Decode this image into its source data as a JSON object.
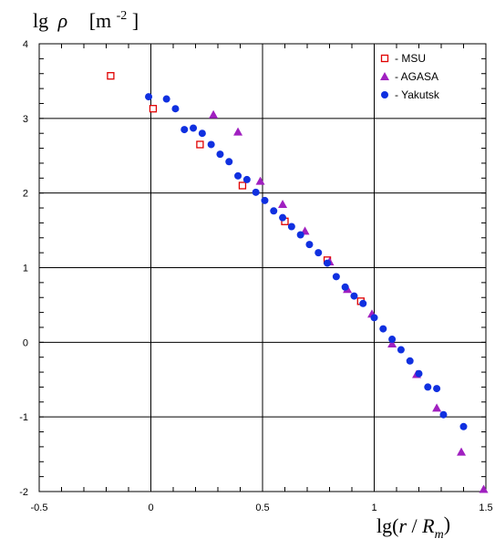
{
  "chart_data": {
    "type": "scatter",
    "ylabel": {
      "base": "lg",
      "symbol": "ρ",
      "unit_open": "[m",
      "unit_exp": "-2",
      "unit_close": "]"
    },
    "xlabel": {
      "prefix": "lg(",
      "var": "r",
      "slash": " / ",
      "denom": "R",
      "sub": "m",
      "suffix": ")"
    },
    "xlim": [
      -0.5,
      1.5
    ],
    "ylim": [
      -2,
      4
    ],
    "xticks": [
      -0.5,
      0,
      0.5,
      1,
      1.5
    ],
    "xtick_labels": [
      "-0.5",
      "0",
      "0.5",
      "1",
      "1.5"
    ],
    "yticks": [
      -2,
      -1,
      0,
      1,
      2,
      3,
      4
    ],
    "ytick_labels": [
      "-2",
      "-1",
      "0",
      "1",
      "2",
      "3",
      "4"
    ],
    "grid": true,
    "legend_position": "top-right",
    "series": [
      {
        "name": "- MSU",
        "marker": "square-open",
        "color": "#e00000",
        "points": [
          [
            -0.18,
            3.57
          ],
          [
            0.01,
            3.13
          ],
          [
            0.22,
            2.65
          ],
          [
            0.41,
            2.1
          ],
          [
            0.6,
            1.62
          ],
          [
            0.79,
            1.1
          ],
          [
            0.94,
            0.55
          ]
        ]
      },
      {
        "name": "- AGASA",
        "marker": "triangle",
        "color": "#a020c0",
        "points": [
          [
            0.28,
            3.05
          ],
          [
            0.39,
            2.82
          ],
          [
            0.49,
            2.16
          ],
          [
            0.59,
            1.85
          ],
          [
            0.69,
            1.49
          ],
          [
            0.8,
            1.08
          ],
          [
            0.88,
            0.71
          ],
          [
            0.99,
            0.38
          ],
          [
            1.08,
            -0.02
          ],
          [
            1.19,
            -0.43
          ],
          [
            1.28,
            -0.88
          ],
          [
            1.39,
            -1.47
          ],
          [
            1.49,
            -1.97
          ]
        ]
      },
      {
        "name": "- Yakutsk",
        "marker": "circle",
        "color": "#1030e0",
        "points": [
          [
            -0.01,
            3.29
          ],
          [
            0.07,
            3.26
          ],
          [
            0.11,
            3.13
          ],
          [
            0.15,
            2.85
          ],
          [
            0.19,
            2.87
          ],
          [
            0.23,
            2.8
          ],
          [
            0.27,
            2.65
          ],
          [
            0.31,
            2.52
          ],
          [
            0.35,
            2.42
          ],
          [
            0.39,
            2.23
          ],
          [
            0.43,
            2.18
          ],
          [
            0.47,
            2.01
          ],
          [
            0.51,
            1.9
          ],
          [
            0.55,
            1.76
          ],
          [
            0.59,
            1.67
          ],
          [
            0.63,
            1.55
          ],
          [
            0.67,
            1.44
          ],
          [
            0.71,
            1.31
          ],
          [
            0.75,
            1.2
          ],
          [
            0.79,
            1.06
          ],
          [
            0.83,
            0.88
          ],
          [
            0.87,
            0.74
          ],
          [
            0.91,
            0.62
          ],
          [
            0.95,
            0.52
          ],
          [
            1.0,
            0.33
          ],
          [
            1.04,
            0.18
          ],
          [
            1.08,
            0.04
          ],
          [
            1.12,
            -0.1
          ],
          [
            1.16,
            -0.25
          ],
          [
            1.2,
            -0.42
          ],
          [
            1.24,
            -0.6
          ],
          [
            1.28,
            -0.62
          ],
          [
            1.31,
            -0.97
          ],
          [
            1.4,
            -1.13
          ]
        ]
      }
    ]
  }
}
